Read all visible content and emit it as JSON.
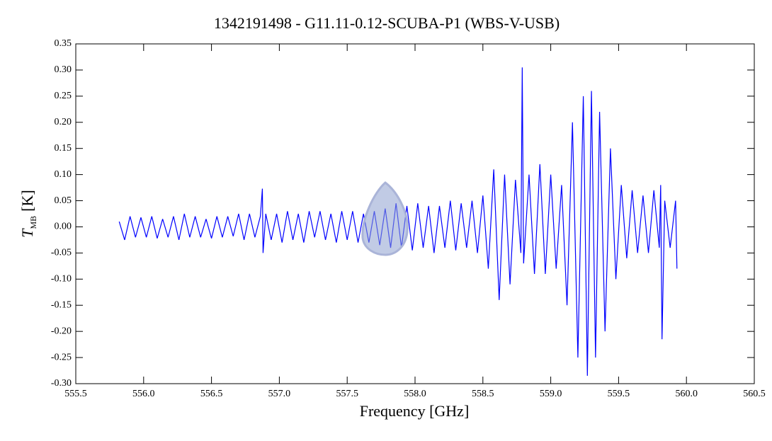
{
  "chart_data": {
    "type": "line",
    "title": "1342191498 - G11.11-0.12-SCUBA-P1 (WBS-V-USB)",
    "xlabel": "Frequency [GHz]",
    "ylabel": {
      "symbol": "T",
      "subscript": "MB",
      "unit": "[K]"
    },
    "xlim": [
      555.5,
      560.5
    ],
    "xticks": [
      555.5,
      {
        "value": 556,
        "label": "556.0"
      },
      556.5,
      {
        "value": 557,
        "label": "557.0"
      },
      557.5,
      {
        "value": 558,
        "label": "558.0"
      },
      558.5,
      {
        "value": 559,
        "label": "559.0"
      },
      559.5,
      {
        "value": 560,
        "label": "560.0"
      },
      560.5
    ],
    "ylim": [
      -0.3,
      0.35
    ],
    "yticks": [
      {
        "value": -0.3,
        "label": "-0.30"
      },
      -0.25,
      {
        "value": -0.2,
        "label": "-0.20"
      },
      -0.15,
      {
        "value": -0.1,
        "label": "-0.10"
      },
      -0.05,
      {
        "value": 0,
        "label": "0.00"
      },
      0.05,
      {
        "value": 0.1,
        "label": "0.10"
      },
      0.15,
      {
        "value": 0.2,
        "label": "0.20"
      },
      0.25,
      {
        "value": 0.3,
        "label": "0.30"
      },
      0.35
    ],
    "x": [
      555.82,
      555.86,
      555.9,
      555.94,
      555.98,
      556.02,
      556.06,
      556.1,
      556.14,
      556.18,
      556.22,
      556.26,
      556.3,
      556.34,
      556.38,
      556.42,
      556.46,
      556.5,
      556.54,
      556.58,
      556.62,
      556.66,
      556.7,
      556.74,
      556.78,
      556.82,
      556.86,
      556.875,
      556.88,
      556.9,
      556.94,
      556.98,
      557.02,
      557.06,
      557.1,
      557.14,
      557.18,
      557.22,
      557.26,
      557.3,
      557.34,
      557.38,
      557.42,
      557.46,
      557.5,
      557.54,
      557.58,
      557.62,
      557.66,
      557.7,
      557.74,
      557.78,
      557.82,
      557.86,
      557.9,
      557.94,
      557.98,
      558.02,
      558.06,
      558.1,
      558.14,
      558.18,
      558.22,
      558.26,
      558.3,
      558.34,
      558.38,
      558.42,
      558.46,
      558.5,
      558.54,
      558.58,
      558.62,
      558.66,
      558.7,
      558.74,
      558.78,
      558.79,
      558.8,
      558.84,
      558.88,
      558.92,
      558.96,
      559.0,
      559.04,
      559.08,
      559.12,
      559.16,
      559.2,
      559.24,
      559.27,
      559.3,
      559.33,
      559.36,
      559.4,
      559.44,
      559.48,
      559.52,
      559.56,
      559.6,
      559.64,
      559.68,
      559.72,
      559.76,
      559.8,
      559.81,
      559.82,
      559.84,
      559.88,
      559.92,
      559.93
    ],
    "series": [
      {
        "color": "#0000ff",
        "values": [
          0.01,
          -0.025,
          0.02,
          -0.02,
          0.018,
          -0.02,
          0.02,
          -0.022,
          0.015,
          -0.02,
          0.02,
          -0.025,
          0.025,
          -0.02,
          0.02,
          -0.02,
          0.015,
          -0.022,
          0.02,
          -0.02,
          0.02,
          -0.018,
          0.025,
          -0.025,
          0.025,
          -0.02,
          0.02,
          0.073,
          -0.05,
          0.025,
          -0.025,
          0.025,
          -0.03,
          0.03,
          -0.025,
          0.025,
          -0.03,
          0.03,
          -0.02,
          0.03,
          -0.025,
          0.025,
          -0.03,
          0.03,
          -0.025,
          0.03,
          -0.03,
          0.025,
          -0.03,
          0.03,
          -0.035,
          0.035,
          -0.04,
          0.045,
          -0.04,
          0.04,
          -0.045,
          0.045,
          -0.04,
          0.04,
          -0.05,
          0.04,
          -0.04,
          0.05,
          -0.045,
          0.045,
          -0.04,
          0.05,
          -0.05,
          0.06,
          -0.08,
          0.11,
          -0.14,
          0.1,
          -0.11,
          0.09,
          -0.05,
          0.305,
          -0.07,
          0.1,
          -0.09,
          0.12,
          -0.09,
          0.1,
          -0.08,
          0.08,
          -0.15,
          0.2,
          -0.25,
          0.25,
          -0.285,
          0.26,
          -0.25,
          0.22,
          -0.2,
          0.15,
          -0.1,
          0.08,
          -0.06,
          0.07,
          -0.05,
          0.06,
          -0.05,
          0.07,
          -0.04,
          0.08,
          -0.215,
          0.05,
          -0.04,
          0.05,
          -0.08
        ]
      }
    ]
  }
}
